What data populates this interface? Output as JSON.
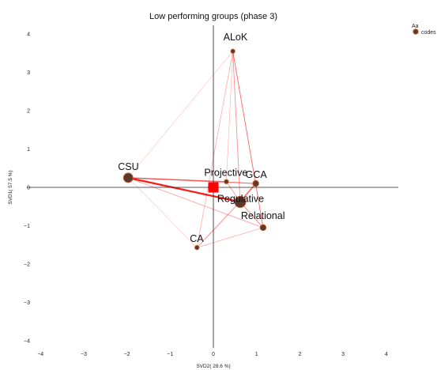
{
  "chart_data": {
    "type": "scatter",
    "title": "Low performing groups (phase 3)",
    "xlabel": "SVD2( 28.6 %)",
    "ylabel": "SVD1( 57.5 %)",
    "xlim": [
      -4.35,
      4.35
    ],
    "ylim": [
      -4.25,
      4.35
    ],
    "xticks": [
      "−4",
      "−3",
      "−2",
      "−1",
      "0",
      "1",
      "2",
      "3",
      "4"
    ],
    "yticks": [
      "4",
      "3",
      "2",
      "1",
      "0",
      "−1",
      "−2",
      "−3",
      "−4"
    ],
    "grid": false,
    "legend": {
      "title": "Aa",
      "label": "codes",
      "position": "top-right"
    },
    "group_mean": {
      "x": 0.0,
      "y": 0.0
    },
    "nodes": [
      {
        "name": "ALoK",
        "x": 0.45,
        "y": 3.55,
        "weight": 1
      },
      {
        "name": "CSU",
        "x": -1.97,
        "y": 0.25,
        "weight": 4
      },
      {
        "name": "Projective",
        "x": 0.3,
        "y": 0.15,
        "weight": 1
      },
      {
        "name": "GCA",
        "x": 0.98,
        "y": 0.1,
        "weight": 2
      },
      {
        "name": "Regulative",
        "x": 0.62,
        "y": -0.38,
        "weight": 5
      },
      {
        "name": "Relational",
        "x": 1.15,
        "y": -1.05,
        "weight": 2
      },
      {
        "name": "CA",
        "x": -0.38,
        "y": -1.57,
        "weight": 1
      }
    ],
    "edges": [
      {
        "from": "CSU",
        "to": "Regulative",
        "weight": 1.0
      },
      {
        "from": "CSU",
        "to": "Projective",
        "weight": 0.5
      },
      {
        "from": "CSU",
        "to": "GCA",
        "weight": 0.45
      },
      {
        "from": "CSU",
        "to": "Relational",
        "weight": 0.3
      },
      {
        "from": "CSU",
        "to": "ALoK",
        "weight": 0.15
      },
      {
        "from": "CSU",
        "to": "CA",
        "weight": 0.15
      },
      {
        "from": "Regulative",
        "to": "GCA",
        "weight": 0.6
      },
      {
        "from": "Regulative",
        "to": "Relational",
        "weight": 0.4
      },
      {
        "from": "Regulative",
        "to": "Projective",
        "weight": 0.35
      },
      {
        "from": "Regulative",
        "to": "ALoK",
        "weight": 0.35
      },
      {
        "from": "Regulative",
        "to": "CA",
        "weight": 0.3
      },
      {
        "from": "ALoK",
        "to": "GCA",
        "weight": 0.3
      },
      {
        "from": "ALoK",
        "to": "Relational",
        "weight": 0.3
      },
      {
        "from": "ALoK",
        "to": "CA",
        "weight": 0.25
      },
      {
        "from": "ALoK",
        "to": "Projective",
        "weight": 0.2
      },
      {
        "from": "GCA",
        "to": "Relational",
        "weight": 0.3
      },
      {
        "from": "GCA",
        "to": "Projective",
        "weight": 0.2
      },
      {
        "from": "CA",
        "to": "Relational",
        "weight": 0.25
      },
      {
        "from": "CA",
        "to": "GCA",
        "weight": 0.15
      }
    ],
    "colors": {
      "node_fill": "#5a3a2c",
      "node_ring": "#c85a2a",
      "edge": "#ff1a1a",
      "mean_marker": "#ff0000",
      "axis": "#222222"
    }
  }
}
